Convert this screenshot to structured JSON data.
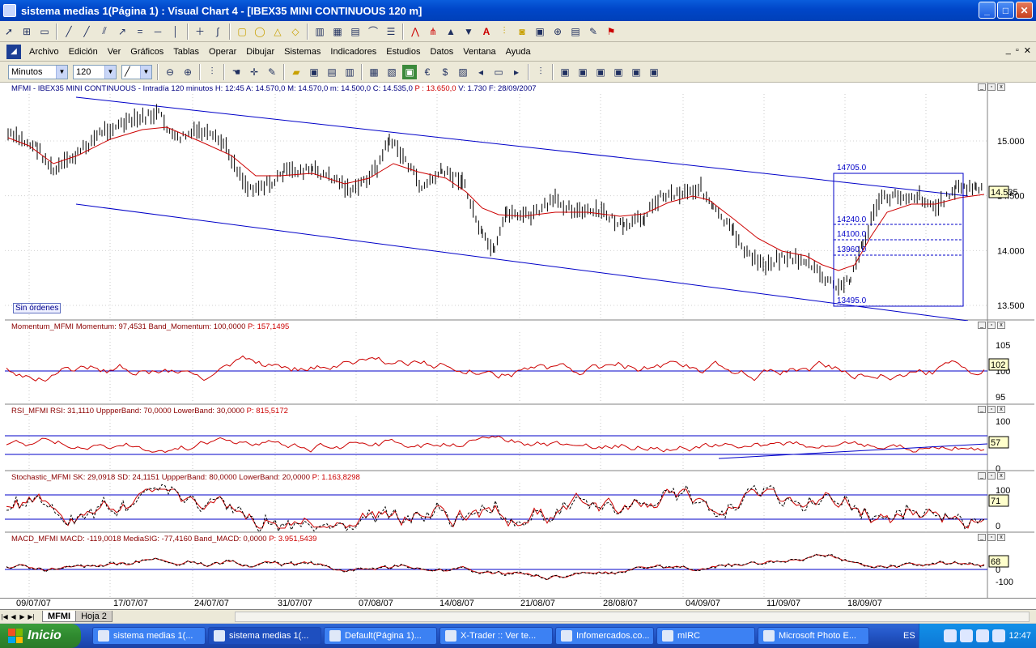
{
  "window": {
    "title": "sistema medias 1(Página 1) : Visual Chart 4 - [IBEX35 MINI CONTINUOUS 120 m]",
    "buttons": [
      "_",
      "□",
      "✕"
    ]
  },
  "menu": {
    "items": [
      "Archivo",
      "Edición",
      "Ver",
      "Gráficos",
      "Tablas",
      "Operar",
      "Dibujar",
      "Sistemas",
      "Indicadores",
      "Estudios",
      "Datos",
      "Ventana",
      "Ayuda"
    ]
  },
  "toolbar2": {
    "timeframe": "Minutos",
    "interval": "120"
  },
  "panes": {
    "price": {
      "name": "MFMI - IBEX35 MINI CONTINUOUS - Intradía 120 minutos",
      "h": "H: 12:45",
      "a": "A: 14.570,0",
      "m": "M: 14.570,0",
      "mn": "m: 14.500,0",
      "c": "C: 14.535,0",
      "p": "P : 13.650,0",
      "v": "V: 1.730",
      "f": "F: 28/09/2007",
      "last_price": "14.535",
      "ticks": [
        "15.000",
        "14.500",
        "14.000",
        "13.500"
      ],
      "levels": [
        "14705.0",
        "14240.0",
        "14100.0",
        "13960.0",
        "13495.0"
      ],
      "no_orders": "Sin órdenes"
    },
    "momentum": {
      "header": "Momentum_MFMI  Momentum: 97,4531  Band_Momentum: 100,0000",
      "p": "P: 157,1495",
      "ticks": [
        "105",
        "100",
        "95"
      ],
      "last": "102"
    },
    "rsi": {
      "header": "RSI_MFMI  RSI: 31,1110  UppperBand: 70,0000  LowerBand: 30,0000",
      "p": "P: 815,5172",
      "ticks": [
        "100",
        "0"
      ],
      "last": "57"
    },
    "stoch": {
      "header": "Stochastic_MFMI  SK: 29,0918  SD: 24,1151  UppperBand: 80,0000  LowerBand: 20,0000",
      "p": "P: 1.163,8298",
      "ticks": [
        "100",
        "0"
      ],
      "last": "71"
    },
    "macd": {
      "header": "MACD_MFMI  MACD: -119,0018  MediaSIG: -77,4160  Band_MACD: 0,0000",
      "p": "P: 3.951,5439",
      "ticks": [
        "0",
        "-100"
      ],
      "last": "68"
    }
  },
  "xaxis": {
    "dates": [
      "09/07/07",
      "17/07/07",
      "24/07/07",
      "31/07/07",
      "07/08/07",
      "14/08/07",
      "21/08/07",
      "28/08/07",
      "04/09/07",
      "11/09/07",
      "18/09/07"
    ]
  },
  "sheets": {
    "tabs": [
      "MFMI",
      "Hoja 2"
    ]
  },
  "taskbar": {
    "start": "Inicio",
    "tasks": [
      "sistema medias 1(...",
      "sistema medias 1(...",
      "Default(Página 1)...",
      "X-Trader :: Ver te...",
      "Infomercados.co...",
      "mIRC",
      "Microsoft Photo E..."
    ],
    "lang": "ES",
    "clock": "12:47"
  },
  "colors": {
    "bars": "#000000",
    "ma": "#cc0000",
    "channel": "#0000c8",
    "band": "#0000c8"
  }
}
